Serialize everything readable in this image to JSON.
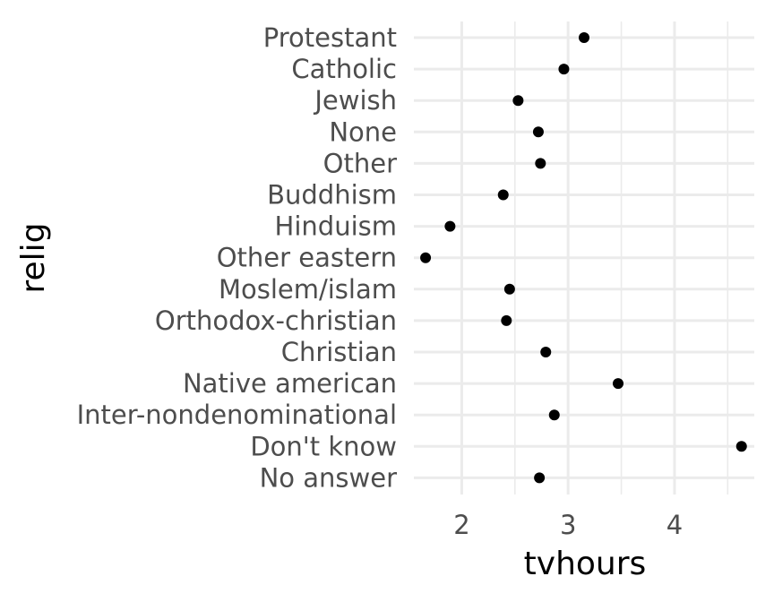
{
  "chart_data": {
    "type": "scatter",
    "xlabel": "tvhours",
    "ylabel": "relig",
    "categories": [
      "Protestant",
      "Catholic",
      "Jewish",
      "None",
      "Other",
      "Buddhism",
      "Hinduism",
      "Other eastern",
      "Moslem/islam",
      "Orthodox-christian",
      "Christian",
      "Native american",
      "Inter-nondenominational",
      "Don't know",
      "No answer"
    ],
    "values": [
      3.15,
      2.96,
      2.53,
      2.72,
      2.74,
      2.39,
      1.89,
      1.66,
      2.45,
      2.42,
      2.79,
      3.47,
      2.87,
      4.63,
      2.73
    ],
    "xlim": [
      1.55,
      4.75
    ],
    "xticks": [
      2,
      3,
      4
    ],
    "grid": true,
    "legend": "none"
  }
}
